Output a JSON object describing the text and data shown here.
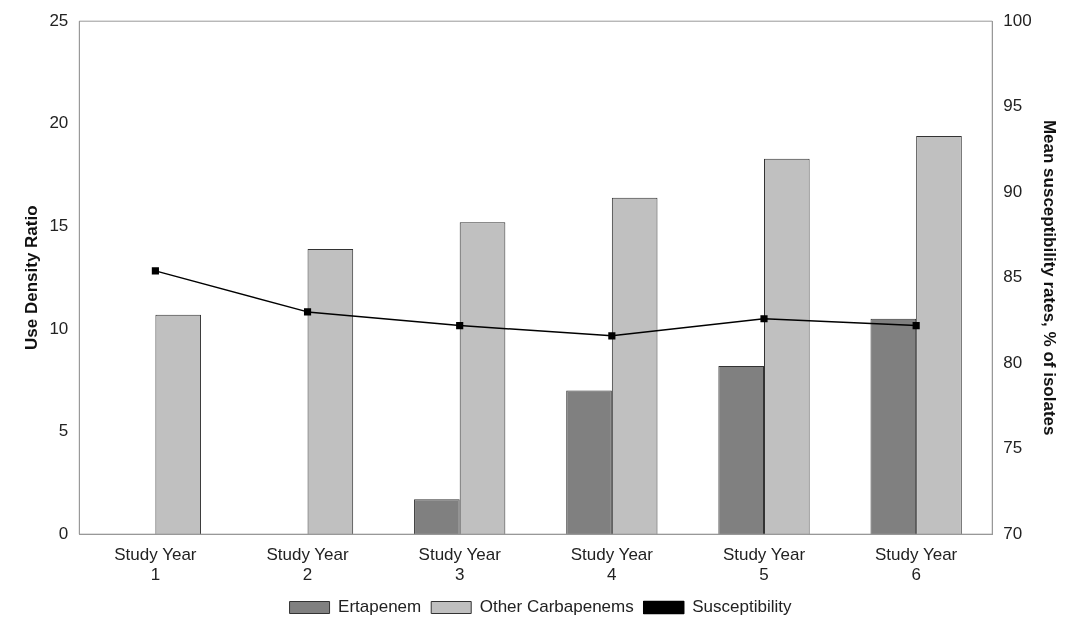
{
  "chart_data": {
    "type": "bar",
    "categories": [
      "Study Year 1",
      "Study Year 2",
      "Study Year 3",
      "Study Year 4",
      "Study Year 5",
      "Study Year 6"
    ],
    "series": [
      {
        "name": "Ertapenem",
        "color": "#808080",
        "values": [
          0,
          0,
          1.7,
          7.0,
          8.2,
          10.5
        ]
      },
      {
        "name": "Other Carbapenems",
        "color": "#c0c0c0",
        "values": [
          10.7,
          13.9,
          15.2,
          16.4,
          18.3,
          19.4
        ]
      },
      {
        "name": "Susceptibility",
        "type": "line",
        "axis": "y2",
        "color": "#000000",
        "marker": "square",
        "values": [
          85.4,
          83.0,
          82.2,
          81.6,
          82.6,
          82.2
        ]
      }
    ],
    "ylabel": "Use Density Ratio",
    "y2label": "Mean susceptibility rates, % of isolates",
    "ylim": [
      0,
      25
    ],
    "yticks": [
      0,
      5,
      10,
      15,
      20,
      25
    ],
    "y2lim": [
      70,
      100
    ],
    "y2ticks": [
      70,
      75,
      80,
      85,
      90,
      95,
      100
    ],
    "legend": "bottom",
    "grid": false
  }
}
